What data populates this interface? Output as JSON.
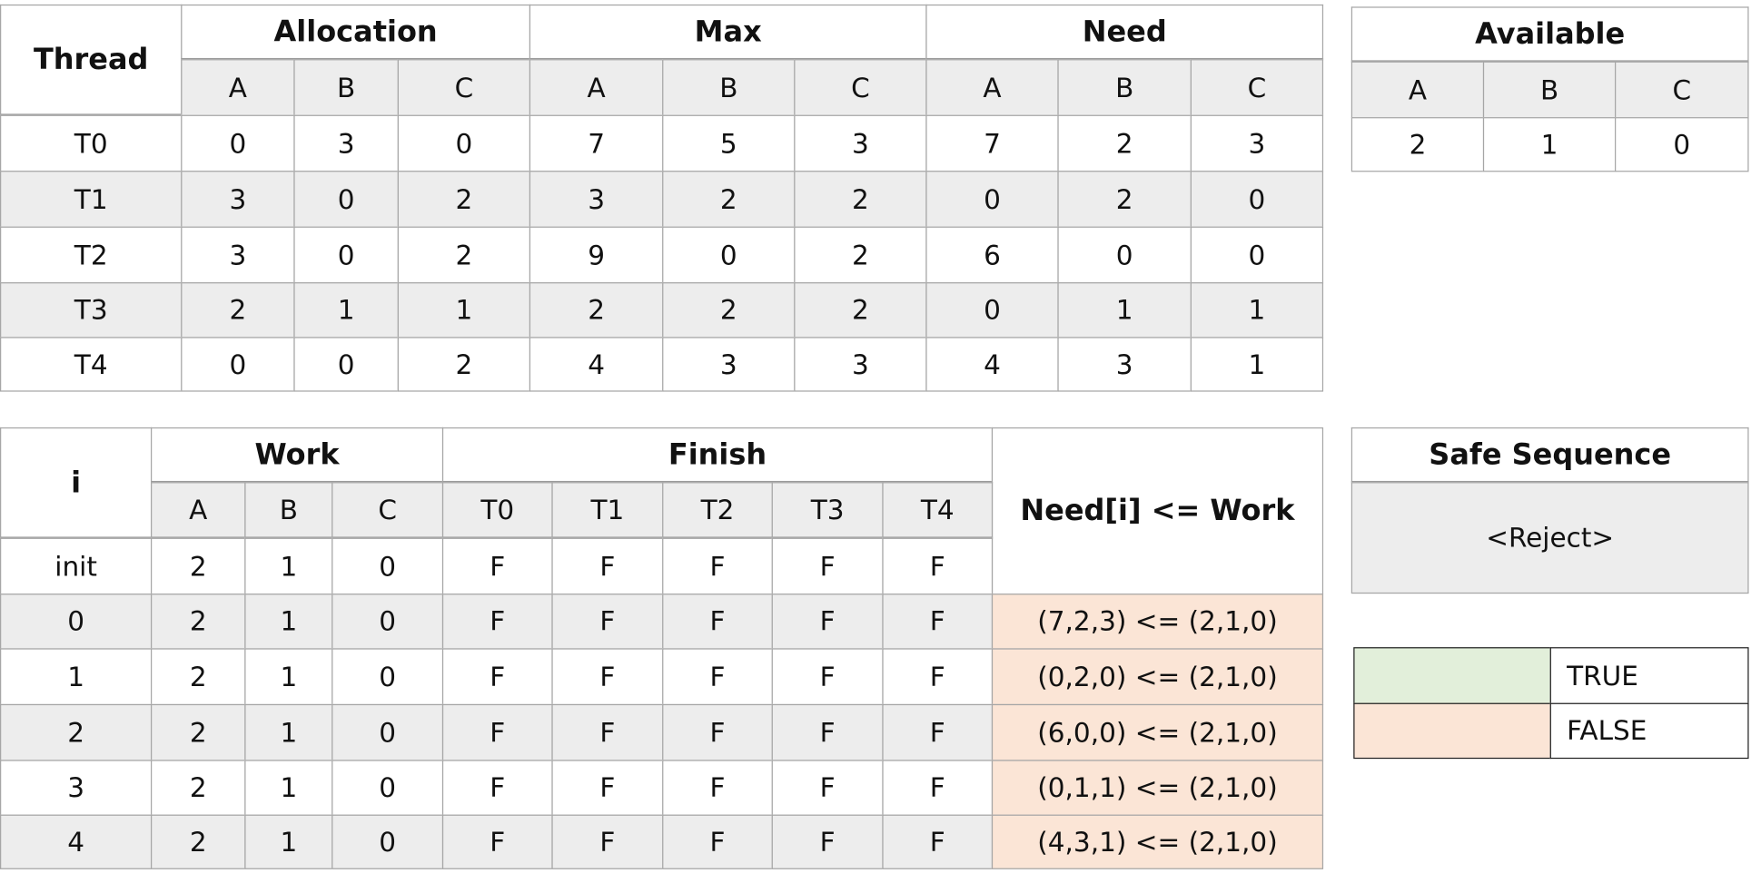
{
  "resource_table": {
    "headers": {
      "thread": "Thread",
      "allocation": "Allocation",
      "max": "Max",
      "need": "Need"
    },
    "columns": [
      "A",
      "B",
      "C",
      "A",
      "B",
      "C",
      "A",
      "B",
      "C"
    ],
    "rows": [
      [
        "T0",
        0,
        3,
        0,
        7,
        5,
        3,
        7,
        2,
        3
      ],
      [
        "T1",
        3,
        0,
        2,
        3,
        2,
        2,
        0,
        2,
        0
      ],
      [
        "T2",
        3,
        0,
        2,
        9,
        0,
        2,
        6,
        0,
        0
      ],
      [
        "T3",
        2,
        1,
        1,
        2,
        2,
        2,
        0,
        1,
        1
      ],
      [
        "T4",
        0,
        0,
        2,
        4,
        3,
        3,
        4,
        3,
        1
      ]
    ]
  },
  "available_table": {
    "title": "Available",
    "columns": [
      "A",
      "B",
      "C"
    ],
    "values": [
      2,
      1,
      0
    ]
  },
  "work_table": {
    "headers": {
      "i": "i",
      "work": "Work",
      "finish": "Finish",
      "check": "Need[i] <= Work"
    },
    "columns": [
      "A",
      "B",
      "C",
      "T0",
      "T1",
      "T2",
      "T3",
      "T4"
    ],
    "rows": [
      [
        "init",
        2,
        1,
        0,
        "F",
        "F",
        "F",
        "F",
        "F"
      ],
      [
        0,
        2,
        1,
        0,
        "F",
        "F",
        "F",
        "F",
        "F",
        "(7,2,3) <= (2,1,0)"
      ],
      [
        1,
        2,
        1,
        0,
        "F",
        "F",
        "F",
        "F",
        "F",
        "(0,2,0) <= (2,1,0)"
      ],
      [
        2,
        2,
        1,
        0,
        "F",
        "F",
        "F",
        "F",
        "F",
        "(6,0,0) <= (2,1,0)"
      ],
      [
        3,
        2,
        1,
        0,
        "F",
        "F",
        "F",
        "F",
        "F",
        "(0,1,1) <= (2,1,0)"
      ],
      [
        4,
        2,
        1,
        0,
        "F",
        "F",
        "F",
        "F",
        "F",
        "(4,3,1) <= (2,1,0)"
      ]
    ]
  },
  "safe_sequence": {
    "title": "Safe Sequence",
    "value": "<Reject>"
  },
  "legend": [
    {
      "label": "TRUE",
      "color": "#e2efda"
    },
    {
      "label": "FALSE",
      "color": "#fbe5d6"
    }
  ]
}
